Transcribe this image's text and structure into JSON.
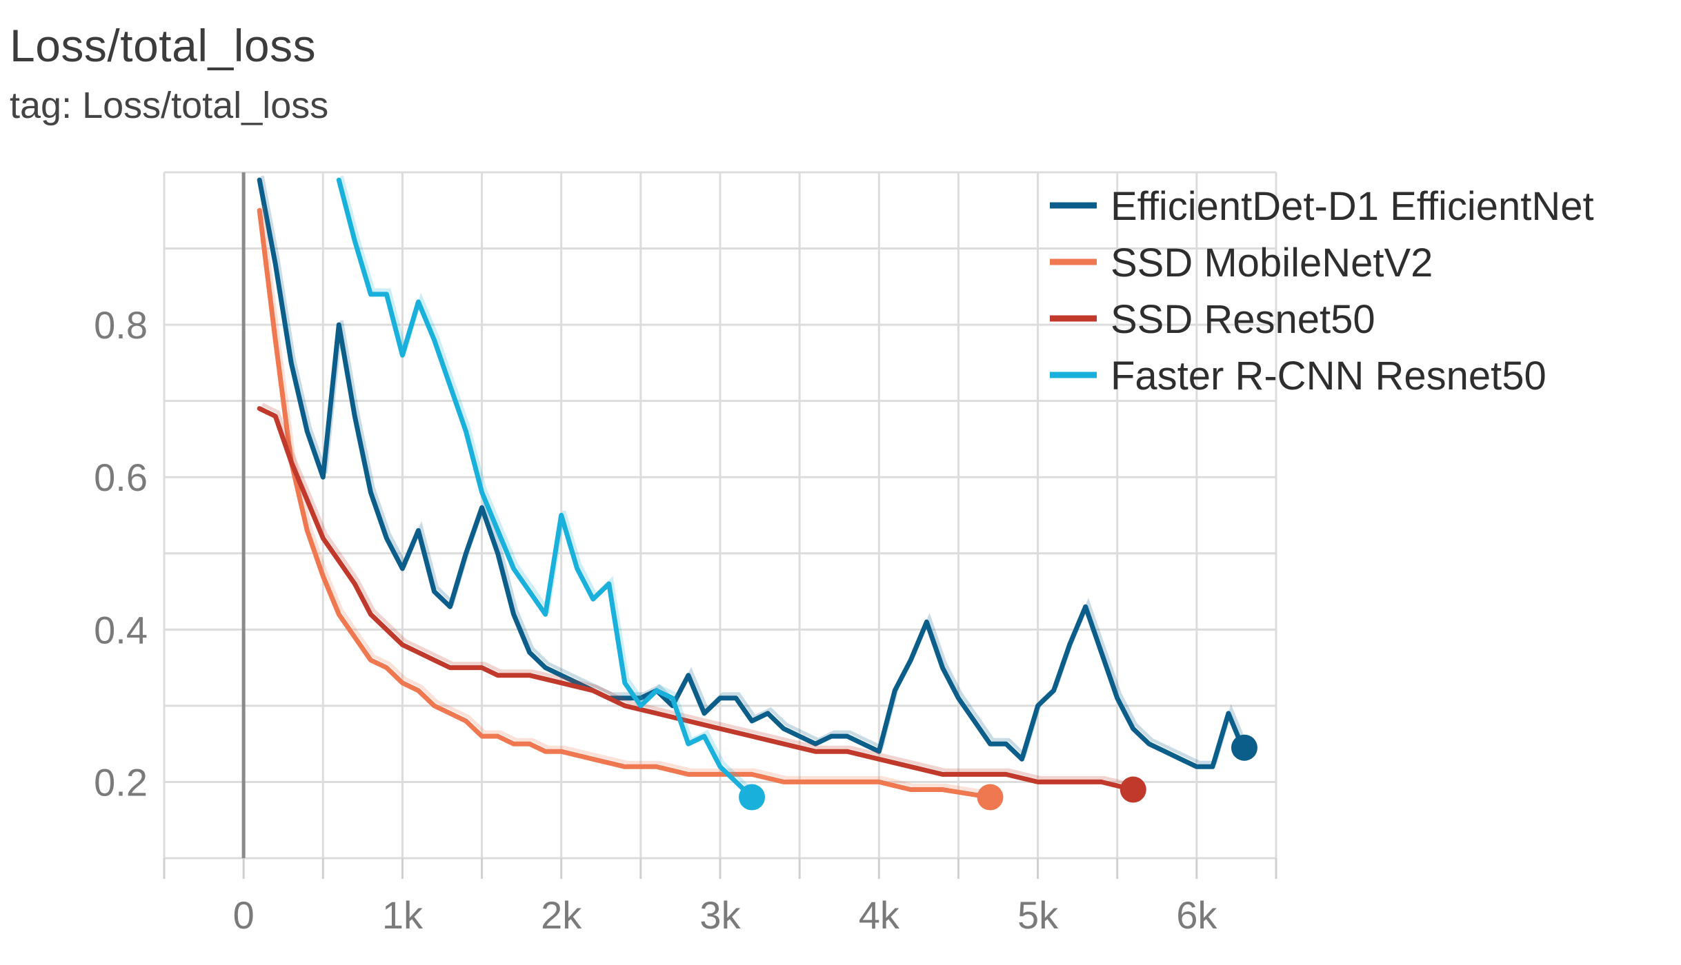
{
  "title": "Loss/total_loss",
  "subtitle": "tag: Loss/total_loss",
  "chart_data": {
    "type": "line",
    "title": "Loss/total_loss",
    "subtitle": "tag: Loss/total_loss",
    "xlabel": "",
    "ylabel": "",
    "xlim": [
      -500,
      6500
    ],
    "ylim": [
      0.1,
      1.0
    ],
    "x_ticks": [
      0,
      1000,
      2000,
      3000,
      4000,
      5000,
      6000
    ],
    "x_tick_labels": [
      "0",
      "1k",
      "2k",
      "3k",
      "4k",
      "5k",
      "6k"
    ],
    "y_ticks": [
      0.2,
      0.4,
      0.6,
      0.8
    ],
    "y_tick_labels": [
      "0.2",
      "0.4",
      "0.6",
      "0.8"
    ],
    "grid": true,
    "legend_position": "top-right",
    "series": [
      {
        "name": "EfficientDet-D1 EfficientNet",
        "color": "#0b5e8a",
        "x": [
          100,
          200,
          300,
          400,
          500,
          600,
          700,
          800,
          900,
          1000,
          1100,
          1200,
          1300,
          1400,
          1500,
          1600,
          1700,
          1800,
          1900,
          2000,
          2100,
          2200,
          2300,
          2400,
          2500,
          2600,
          2700,
          2800,
          2900,
          3000,
          3100,
          3200,
          3300,
          3400,
          3500,
          3600,
          3700,
          3800,
          3900,
          4000,
          4100,
          4200,
          4300,
          4400,
          4500,
          4600,
          4700,
          4800,
          4900,
          5000,
          5100,
          5200,
          5300,
          5400,
          5500,
          5600,
          5700,
          5800,
          5900,
          6000,
          6100,
          6200,
          6300
        ],
        "y": [
          0.99,
          0.88,
          0.75,
          0.66,
          0.6,
          0.8,
          0.68,
          0.58,
          0.52,
          0.48,
          0.53,
          0.45,
          0.43,
          0.5,
          0.56,
          0.5,
          0.42,
          0.37,
          0.35,
          0.34,
          0.33,
          0.32,
          0.31,
          0.31,
          0.31,
          0.32,
          0.3,
          0.34,
          0.29,
          0.31,
          0.31,
          0.28,
          0.29,
          0.27,
          0.26,
          0.25,
          0.26,
          0.26,
          0.25,
          0.24,
          0.32,
          0.36,
          0.41,
          0.35,
          0.31,
          0.28,
          0.25,
          0.25,
          0.23,
          0.3,
          0.32,
          0.38,
          0.43,
          0.37,
          0.31,
          0.27,
          0.25,
          0.24,
          0.23,
          0.22,
          0.22,
          0.29,
          0.24
        ],
        "last_point": [
          6300,
          0.245
        ]
      },
      {
        "name": "SSD MobileNetV2",
        "color": "#f07850",
        "x": [
          100,
          200,
          300,
          400,
          500,
          600,
          700,
          800,
          900,
          1000,
          1100,
          1200,
          1300,
          1400,
          1500,
          1600,
          1700,
          1800,
          1900,
          2000,
          2200,
          2400,
          2600,
          2800,
          3000,
          3200,
          3400,
          3600,
          3800,
          4000,
          4200,
          4400,
          4700
        ],
        "y": [
          0.95,
          0.78,
          0.62,
          0.53,
          0.47,
          0.42,
          0.39,
          0.36,
          0.35,
          0.33,
          0.32,
          0.3,
          0.29,
          0.28,
          0.26,
          0.26,
          0.25,
          0.25,
          0.24,
          0.24,
          0.23,
          0.22,
          0.22,
          0.21,
          0.21,
          0.21,
          0.2,
          0.2,
          0.2,
          0.2,
          0.19,
          0.19,
          0.18
        ],
        "last_point": [
          4700,
          0.18
        ]
      },
      {
        "name": "SSD Resnet50",
        "color": "#c0392b",
        "x": [
          100,
          200,
          300,
          400,
          500,
          600,
          700,
          800,
          900,
          1000,
          1100,
          1200,
          1300,
          1400,
          1500,
          1600,
          1800,
          2000,
          2200,
          2400,
          2600,
          2800,
          3000,
          3200,
          3400,
          3600,
          3800,
          4000,
          4200,
          4400,
          4600,
          4800,
          5000,
          5200,
          5400,
          5600
        ],
        "y": [
          0.69,
          0.68,
          0.62,
          0.57,
          0.52,
          0.49,
          0.46,
          0.42,
          0.4,
          0.38,
          0.37,
          0.36,
          0.35,
          0.35,
          0.35,
          0.34,
          0.34,
          0.33,
          0.32,
          0.3,
          0.29,
          0.28,
          0.27,
          0.26,
          0.25,
          0.24,
          0.24,
          0.23,
          0.22,
          0.21,
          0.21,
          0.21,
          0.2,
          0.2,
          0.2,
          0.19
        ],
        "last_point": [
          5600,
          0.19
        ]
      },
      {
        "name": "Faster R-CNN Resnet50",
        "color": "#1ab0dc",
        "x": [
          600,
          700,
          800,
          900,
          1000,
          1100,
          1200,
          1300,
          1400,
          1500,
          1600,
          1700,
          1800,
          1900,
          2000,
          2100,
          2200,
          2300,
          2400,
          2500,
          2600,
          2700,
          2800,
          2900,
          3000,
          3100,
          3200
        ],
        "y": [
          0.99,
          0.91,
          0.84,
          0.84,
          0.76,
          0.83,
          0.78,
          0.72,
          0.66,
          0.58,
          0.53,
          0.48,
          0.45,
          0.42,
          0.55,
          0.48,
          0.44,
          0.46,
          0.33,
          0.3,
          0.32,
          0.31,
          0.25,
          0.26,
          0.22,
          0.2,
          0.18
        ],
        "last_point": [
          3200,
          0.18
        ]
      }
    ]
  }
}
